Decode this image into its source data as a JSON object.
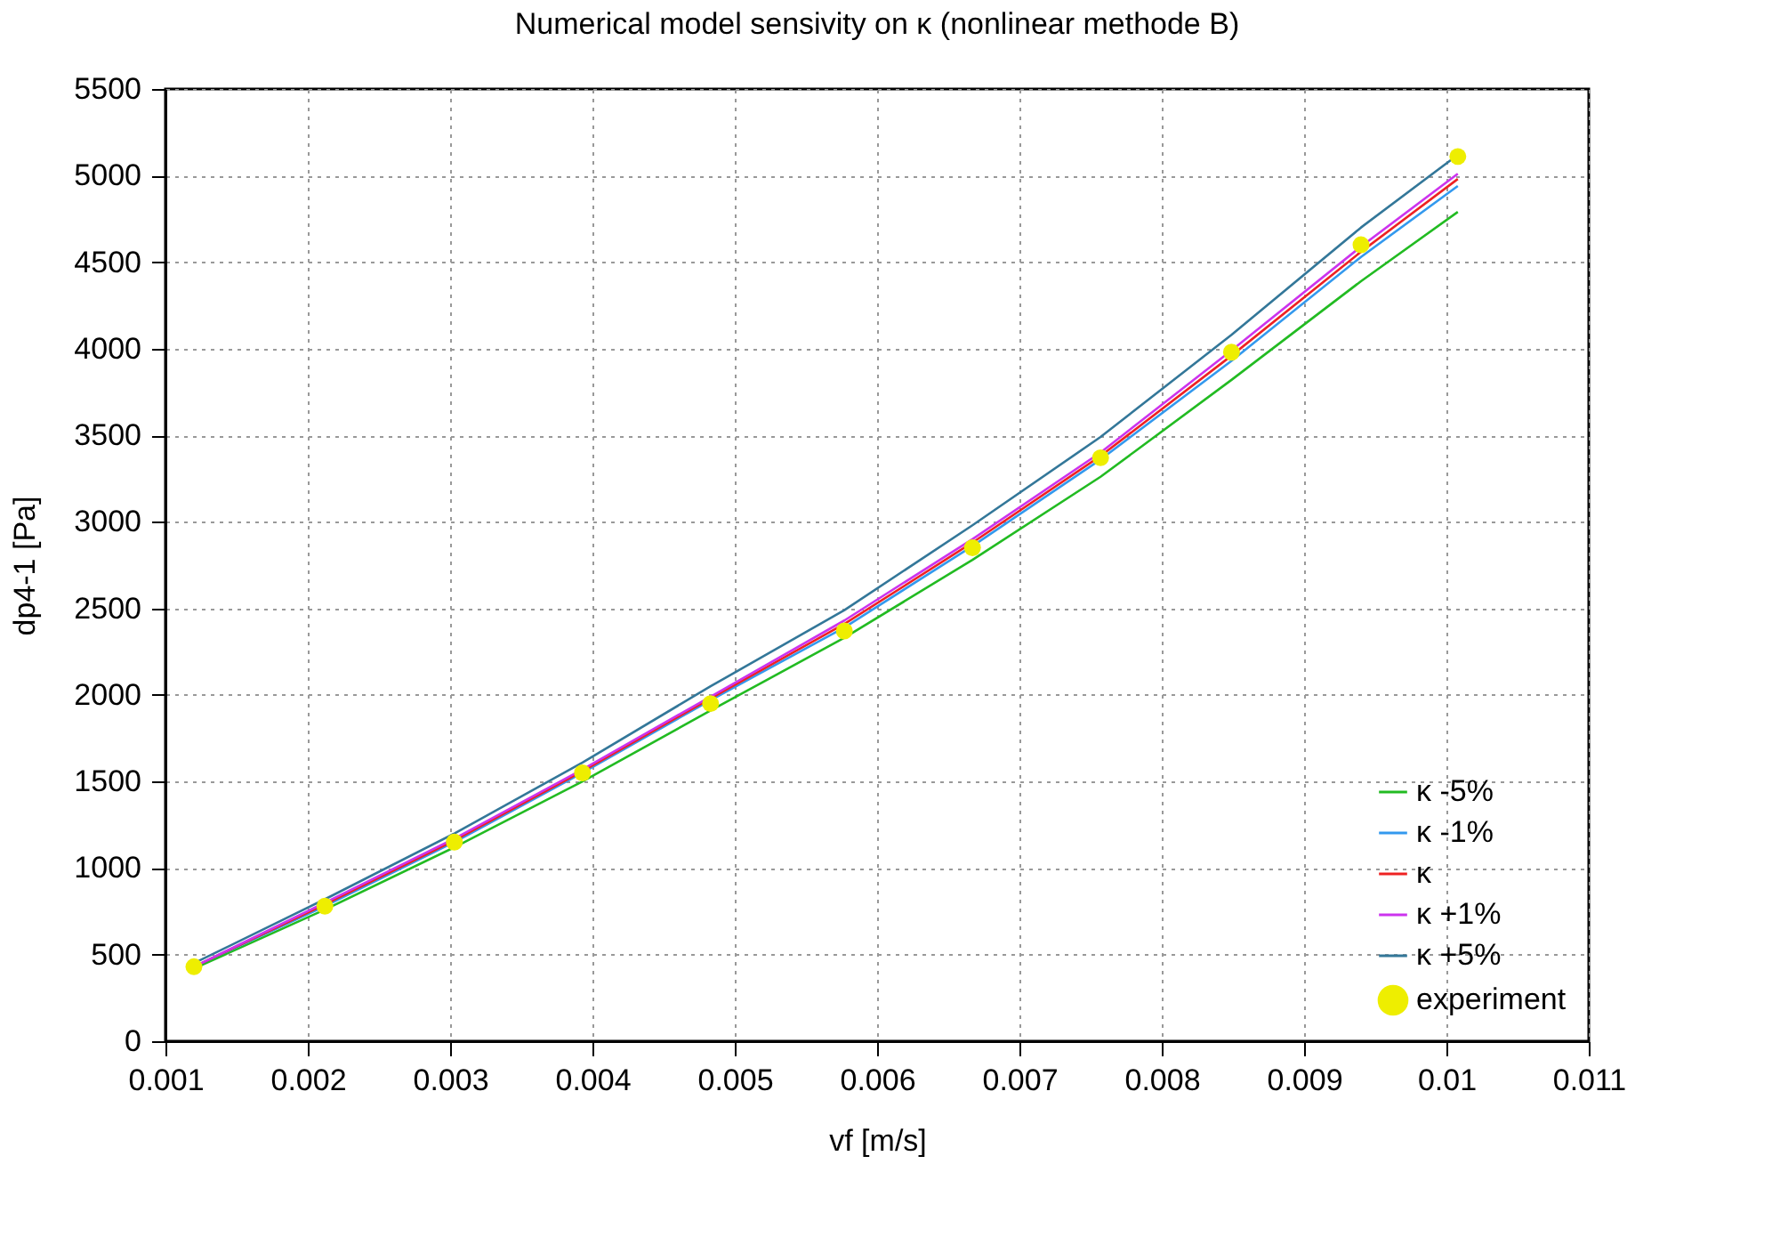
{
  "chart_data": {
    "type": "line",
    "title": "Numerical model sensivity on κ (nonlinear methode B)",
    "xlabel": "vf [m/s]",
    "ylabel": "dp4-1 [Pa]",
    "x": [
      0.0012,
      0.00212,
      0.00303,
      0.00393,
      0.00483,
      0.00577,
      0.00667,
      0.00757,
      0.00849,
      0.0094,
      0.01008
    ],
    "series": [
      {
        "name": "κ -5%",
        "color": "#22bb22",
        "values": [
          420,
          760,
          1120,
          1500,
          1910,
          2330,
          2780,
          3260,
          3820,
          4390,
          4790
        ]
      },
      {
        "name": "κ -1%",
        "color": "#3399ee",
        "values": [
          430,
          780,
          1150,
          1550,
          1970,
          2390,
          2860,
          3360,
          3930,
          4530,
          4940
        ]
      },
      {
        "name": "κ",
        "color": "#ee2222",
        "values": [
          430,
          790,
          1160,
          1560,
          1980,
          2410,
          2880,
          3380,
          3960,
          4560,
          4980
        ]
      },
      {
        "name": "κ +1%",
        "color": "#cc33ee",
        "values": [
          430,
          800,
          1170,
          1570,
          1990,
          2430,
          2900,
          3400,
          3990,
          4590,
          5010
        ]
      },
      {
        "name": "κ +5%",
        "color": "#337799",
        "values": [
          450,
          820,
          1200,
          1610,
          2050,
          2490,
          2980,
          3490,
          4080,
          4700,
          5120
        ]
      },
      {
        "name": "experiment",
        "type": "scatter",
        "marker": "circle",
        "color": "#eeee00",
        "values": [
          430,
          780,
          1150,
          1550,
          1950,
          2370,
          2850,
          3370,
          3980,
          4600,
          5110
        ]
      }
    ],
    "xlim": [
      0.001,
      0.011
    ],
    "xticks": [
      0.001,
      0.002,
      0.003,
      0.004,
      0.005,
      0.006,
      0.007,
      0.008,
      0.009,
      0.01,
      0.011
    ],
    "ylim": [
      0,
      5500
    ],
    "yticks": [
      0,
      500,
      1000,
      1500,
      2000,
      2500,
      3000,
      3500,
      4000,
      4500,
      5000,
      5500
    ],
    "grid": true,
    "legend": "bottom right",
    "line_style": "solid"
  }
}
